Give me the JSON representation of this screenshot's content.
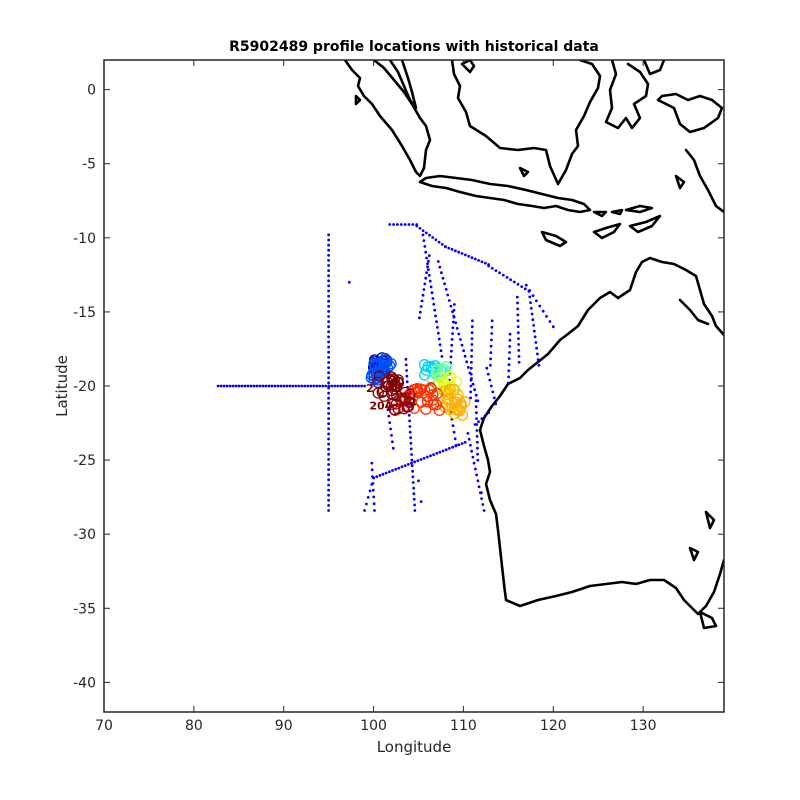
{
  "chart_data": {
    "type": "scatter",
    "title": "R5902489 profile locations with historical data",
    "xlabel": "Longitude",
    "ylabel": "Latitude",
    "xlim": [
      70,
      139
    ],
    "ylim": [
      -42,
      2
    ],
    "xticks": [
      70,
      80,
      90,
      100,
      110,
      120,
      130
    ],
    "yticks": [
      0,
      -5,
      -10,
      -15,
      -20,
      -25,
      -30,
      -35,
      -40
    ],
    "grid": false,
    "legend": "none",
    "colors": {
      "historical": "#0000ff",
      "coastline": "#000000",
      "profile_colormap": [
        "#00008f",
        "#0050ff",
        "#00d0ff",
        "#60ffa0",
        "#e0ff20",
        "#ffb000",
        "#ff3000",
        "#a00000",
        "#800000"
      ]
    },
    "historical_tracks": [
      {
        "from": [
          95.0,
          -9.8
        ],
        "to": [
          95.0,
          -28.4
        ],
        "n": 55
      },
      {
        "from": [
          82.7,
          -20.0
        ],
        "to": [
          99.0,
          -20.0
        ],
        "n": 50
      },
      {
        "from": [
          101.8,
          -9.1
        ],
        "to": [
          104.8,
          -9.1
        ],
        "n": 8
      },
      {
        "from": [
          104.8,
          -9.2
        ],
        "to": [
          108.0,
          -10.6
        ],
        "n": 10
      },
      {
        "from": [
          108.0,
          -10.6
        ],
        "to": [
          112.8,
          -11.8
        ],
        "n": 14
      },
      {
        "from": [
          112.8,
          -11.9
        ],
        "to": [
          117.3,
          -13.6
        ],
        "n": 12
      },
      {
        "from": [
          117.3,
          -13.6
        ],
        "to": [
          118.4,
          -18.6
        ],
        "n": 14
      },
      {
        "from": [
          117.0,
          -13.2
        ],
        "to": [
          120.0,
          -16.0
        ],
        "n": 9
      },
      {
        "from": [
          116.0,
          -14.0
        ],
        "to": [
          116.2,
          -18.4
        ],
        "n": 12
      },
      {
        "from": [
          115.2,
          -16.5
        ],
        "to": [
          115.0,
          -19.8
        ],
        "n": 9
      },
      {
        "from": [
          105.5,
          -9.8
        ],
        "to": [
          107.6,
          -18.0
        ],
        "n": 22
      },
      {
        "from": [
          106.2,
          -11.2
        ],
        "to": [
          105.1,
          -15.4
        ],
        "n": 12
      },
      {
        "from": [
          107.2,
          -11.6
        ],
        "to": [
          111.6,
          -21.0
        ],
        "n": 26
      },
      {
        "from": [
          109.0,
          -14.5
        ],
        "to": [
          108.4,
          -20.0
        ],
        "n": 15
      },
      {
        "from": [
          111.0,
          -15.6
        ],
        "to": [
          110.8,
          -20.8
        ],
        "n": 14
      },
      {
        "from": [
          113.2,
          -15.6
        ],
        "to": [
          113.0,
          -18.6
        ],
        "n": 8
      },
      {
        "from": [
          112.6,
          -18.8
        ],
        "to": [
          113.6,
          -21.2
        ],
        "n": 7
      },
      {
        "from": [
          103.6,
          -18.2
        ],
        "to": [
          104.6,
          -28.4
        ],
        "n": 28
      },
      {
        "from": [
          111.4,
          -21.0
        ],
        "to": [
          111.6,
          -25.0
        ],
        "n": 11
      },
      {
        "from": [
          99.0,
          -28.4
        ],
        "to": [
          100.0,
          -26.2
        ],
        "n": 6
      },
      {
        "from": [
          100.0,
          -26.2
        ],
        "to": [
          110.2,
          -23.8
        ],
        "n": 30
      },
      {
        "from": [
          99.8,
          -25.2
        ],
        "to": [
          100.1,
          -28.4
        ],
        "n": 8
      },
      {
        "from": [
          110.5,
          -23.2
        ],
        "to": [
          112.3,
          -28.4
        ],
        "n": 14
      },
      {
        "from": [
          101.6,
          -21.6
        ],
        "to": [
          102.2,
          -24.2
        ],
        "n": 7
      },
      {
        "from": [
          108.6,
          -21.8
        ],
        "to": [
          109.2,
          -24.0
        ],
        "n": 6
      },
      {
        "from": [
          111.3,
          -22.6
        ],
        "to": [
          112.8,
          -21.8
        ],
        "n": 5
      }
    ],
    "historical_points": [
      [
        97.3,
        -13.0
      ],
      [
        105.0,
        -26.4
      ],
      [
        105.3,
        -27.8
      ],
      [
        112.0,
        -27.2
      ]
    ],
    "profile_clusters": [
      {
        "center": [
          100.7,
          -18.7
        ],
        "spread": [
          0.9,
          0.6
        ],
        "color_index": 0,
        "n": 18
      },
      {
        "center": [
          100.2,
          -19.0
        ],
        "spread": [
          0.9,
          0.6
        ],
        "color_index": 1,
        "n": 16
      },
      {
        "center": [
          101.3,
          -18.6
        ],
        "spread": [
          0.8,
          0.5
        ],
        "color_index": 1,
        "n": 10
      },
      {
        "center": [
          106.5,
          -19.0
        ],
        "spread": [
          1.0,
          0.5
        ],
        "color_index": 2,
        "n": 10
      },
      {
        "center": [
          107.5,
          -19.3
        ],
        "spread": [
          1.0,
          0.6
        ],
        "color_index": 3,
        "n": 10
      },
      {
        "center": [
          108.2,
          -20.0
        ],
        "spread": [
          1.1,
          0.7
        ],
        "color_index": 4,
        "n": 14
      },
      {
        "center": [
          108.8,
          -20.9
        ],
        "spread": [
          1.1,
          0.7
        ],
        "color_index": 5,
        "n": 16
      },
      {
        "center": [
          109.4,
          -21.5
        ],
        "spread": [
          0.9,
          0.5
        ],
        "color_index": 5,
        "n": 10
      },
      {
        "center": [
          105.6,
          -20.9
        ],
        "spread": [
          1.8,
          0.8
        ],
        "color_index": 6,
        "n": 24
      },
      {
        "center": [
          103.2,
          -21.0
        ],
        "spread": [
          1.3,
          0.7
        ],
        "color_index": 7,
        "n": 18
      },
      {
        "center": [
          101.6,
          -20.0
        ],
        "spread": [
          1.2,
          0.7
        ],
        "color_index": 8,
        "n": 22
      }
    ],
    "profile_labels": [
      {
        "text": "204",
        "lon": 100.8,
        "lat": -21.6
      },
      {
        "text": "2",
        "lon": 99.6,
        "lat": -20.4
      },
      {
        "text": "2",
        "lon": 102.6,
        "lat": -21.0
      },
      {
        "text": "2",
        "lon": 104.4,
        "lat": -21.3
      }
    ]
  }
}
